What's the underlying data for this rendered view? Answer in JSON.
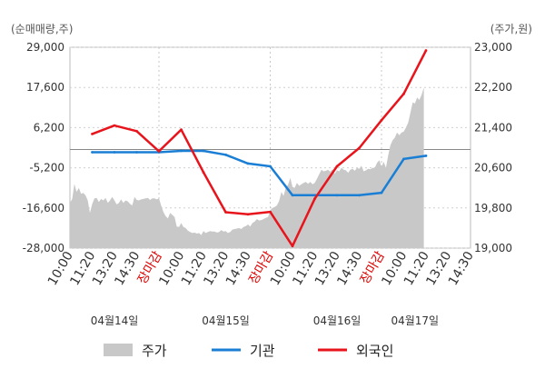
{
  "chart_data": {
    "type": "line",
    "left_unit": "(순매매량,주)",
    "right_unit": "(주가,원)",
    "left_ticks": [
      "29,000",
      "17,600",
      "6,200",
      "-5,200",
      "-16,600",
      "-28,000"
    ],
    "right_ticks": [
      "23,000",
      "22,200",
      "21,400",
      "20,600",
      "19,800",
      "19,000"
    ],
    "left_ylim": [
      -28000,
      29000
    ],
    "right_ylim": [
      19000,
      23000
    ],
    "x_tick_labels": [
      {
        "label": "10:00",
        "color": "#333333"
      },
      {
        "label": "11:20",
        "color": "#333333"
      },
      {
        "label": "13:20",
        "color": "#333333"
      },
      {
        "label": "14:30",
        "color": "#333333"
      },
      {
        "label": "장마감",
        "color": "#e00000"
      },
      {
        "label": "10:00",
        "color": "#333333"
      },
      {
        "label": "11:20",
        "color": "#333333"
      },
      {
        "label": "13:20",
        "color": "#333333"
      },
      {
        "label": "14:30",
        "color": "#333333"
      },
      {
        "label": "장마감",
        "color": "#e00000"
      },
      {
        "label": "10:00",
        "color": "#333333"
      },
      {
        "label": "11:20",
        "color": "#333333"
      },
      {
        "label": "13:20",
        "color": "#333333"
      },
      {
        "label": "14:30",
        "color": "#333333"
      },
      {
        "label": "장마감",
        "color": "#e00000"
      },
      {
        "label": "10:00",
        "color": "#333333"
      },
      {
        "label": "11:20",
        "color": "#333333"
      },
      {
        "label": "13:20",
        "color": "#333333"
      },
      {
        "label": "14:30",
        "color": "#333333"
      }
    ],
    "dates": [
      {
        "label": "04월14일",
        "at_tick": 2
      },
      {
        "label": "04월15일",
        "at_tick": 7
      },
      {
        "label": "04월16일",
        "at_tick": 12
      },
      {
        "label": "04월17일",
        "at_tick": 15.5
      }
    ],
    "series": [
      {
        "name": "주가",
        "kind": "area",
        "axis": "right",
        "color": "#c8c8c8",
        "x": [
          0,
          0.1,
          0.2,
          0.3,
          0.4,
          0.5,
          0.6,
          0.7,
          0.8,
          0.9,
          1.0,
          1.1,
          1.2,
          1.3,
          1.4,
          1.5,
          1.6,
          1.7,
          1.8,
          1.9,
          2.0,
          2.1,
          2.2,
          2.3,
          2.4,
          2.5,
          2.6,
          2.7,
          2.8,
          2.9,
          3.0,
          3.1,
          3.2,
          3.3,
          3.4,
          3.5,
          3.6,
          3.7,
          3.8,
          3.9,
          4.0,
          4.1,
          4.2,
          4.3,
          4.4,
          4.5,
          4.6,
          4.7,
          4.8,
          4.9,
          5.0,
          5.1,
          5.2,
          5.3,
          5.4,
          5.5,
          5.6,
          5.7,
          5.8,
          5.9,
          6.0,
          6.1,
          6.2,
          6.3,
          6.4,
          6.5,
          6.6,
          6.7,
          6.8,
          6.9,
          7.0,
          7.1,
          7.2,
          7.3,
          7.4,
          7.5,
          7.6,
          7.7,
          7.8,
          7.9,
          8.0,
          8.1,
          8.2,
          8.3,
          8.4,
          8.5,
          8.6,
          8.7,
          8.8,
          8.9,
          9.0,
          9.1,
          9.2,
          9.3,
          9.4,
          9.5,
          9.6,
          9.7,
          9.8,
          9.9,
          10.0,
          10.1,
          10.2,
          10.3,
          10.4,
          10.5,
          10.6,
          10.7,
          10.8,
          10.9,
          11.0,
          11.1,
          11.2,
          11.3,
          11.4,
          11.5,
          11.6,
          11.7,
          11.8,
          11.9,
          12.0,
          12.1,
          12.2,
          12.3,
          12.4,
          12.5,
          12.6,
          12.7,
          12.8,
          12.9,
          13.0,
          13.1,
          13.2,
          13.3,
          13.4,
          13.5,
          13.6,
          13.7,
          13.8,
          13.9,
          14.0,
          14.1,
          14.2,
          14.3,
          14.4,
          14.5,
          14.6,
          14.7,
          14.8,
          14.9,
          15.0,
          15.1,
          15.2,
          15.3,
          15.4,
          15.5,
          15.6,
          15.7,
          15.8,
          15.9
        ],
        "values": [
          19900,
          19980,
          20280,
          20120,
          20200,
          20080,
          20100,
          20050,
          19950,
          19700,
          19880,
          19990,
          20000,
          19920,
          19980,
          19950,
          20000,
          19900,
          19950,
          20020,
          19950,
          19870,
          19900,
          19970,
          19900,
          19950,
          19930,
          19880,
          19850,
          20020,
          19960,
          19950,
          19970,
          19980,
          19990,
          20000,
          19960,
          19990,
          19990,
          19970,
          19990,
          19850,
          19720,
          19640,
          19590,
          19700,
          19660,
          19620,
          19430,
          19420,
          19500,
          19420,
          19400,
          19350,
          19320,
          19300,
          19310,
          19290,
          19300,
          19260,
          19340,
          19300,
          19320,
          19340,
          19330,
          19330,
          19310,
          19320,
          19360,
          19330,
          19340,
          19300,
          19320,
          19370,
          19380,
          19390,
          19400,
          19380,
          19420,
          19440,
          19470,
          19430,
          19500,
          19530,
          19580,
          19550,
          19560,
          19580,
          19600,
          19620,
          19750,
          19800,
          19820,
          19850,
          19940,
          20120,
          20040,
          20200,
          20260,
          20400,
          20220,
          20200,
          20300,
          20240,
          20270,
          20300,
          20320,
          20280,
          20320,
          20270,
          20300,
          20380,
          20470,
          20560,
          20530,
          20540,
          20560,
          20520,
          20570,
          20480,
          20550,
          20530,
          20600,
          20560,
          20550,
          20500,
          20560,
          20580,
          20540,
          20600,
          20580,
          20640,
          20530,
          20550,
          20580,
          20570,
          20600,
          20600,
          20700,
          20750,
          20620,
          20720,
          20600,
          20850,
          21050,
          21150,
          21200,
          21300,
          21250,
          21300,
          21320,
          21400,
          21500,
          21700,
          21900,
          21880,
          22000,
          21950,
          22050,
          22200
        ]
      },
      {
        "name": "기관",
        "kind": "line",
        "axis": "left",
        "color": "#1a7fd4",
        "x": [
          1,
          2,
          3,
          4,
          5,
          6,
          7,
          8,
          9,
          10,
          11,
          12,
          13,
          14,
          15,
          16
        ],
        "values": [
          -800,
          -800,
          -800,
          -800,
          -400,
          -400,
          -1500,
          -4000,
          -4800,
          -13000,
          -13000,
          -13000,
          -13000,
          -12300,
          -2700,
          -1800
        ]
      },
      {
        "name": "외국인",
        "kind": "line",
        "axis": "left",
        "color": "#e8141c",
        "x": [
          1,
          2,
          3,
          4,
          5,
          6,
          7,
          8,
          9,
          10,
          11,
          12,
          13,
          14,
          15,
          16
        ],
        "values": [
          4400,
          6800,
          5200,
          -500,
          5600,
          -6500,
          -17800,
          -18400,
          -17700,
          -27400,
          -14000,
          -4800,
          400,
          8300,
          15800,
          28100
        ]
      }
    ],
    "legend": [
      {
        "label": "주가",
        "type": "box",
        "color": "#c8c8c8"
      },
      {
        "label": "기관",
        "type": "line",
        "color": "#1a7fd4"
      },
      {
        "label": "외국인",
        "type": "line",
        "color": "#e8141c"
      }
    ]
  }
}
